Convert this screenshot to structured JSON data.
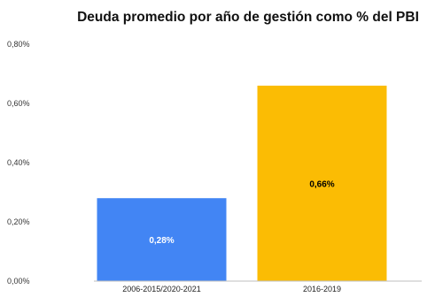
{
  "chart_data": {
    "type": "bar",
    "title": "Deuda promedio por año de gestión como % del PBI",
    "xlabel": "",
    "ylabel": "",
    "categories": [
      "2006-2015/2020-2021",
      "2016-2019"
    ],
    "values": [
      0.28,
      0.66
    ],
    "data_labels": [
      "0,28%",
      "0,66%"
    ],
    "bar_colors": [
      "#4285F4",
      "#FBBC04"
    ],
    "data_label_colors": [
      "#ffffff",
      "#000000"
    ],
    "ylim": [
      0,
      0.8
    ],
    "y_ticks": [
      0,
      0.2,
      0.4,
      0.6,
      0.8
    ],
    "y_tick_labels": [
      "0,00%",
      "0,20%",
      "0,40%",
      "0,60%",
      "0,80%"
    ],
    "grid": false,
    "legend": "none"
  }
}
